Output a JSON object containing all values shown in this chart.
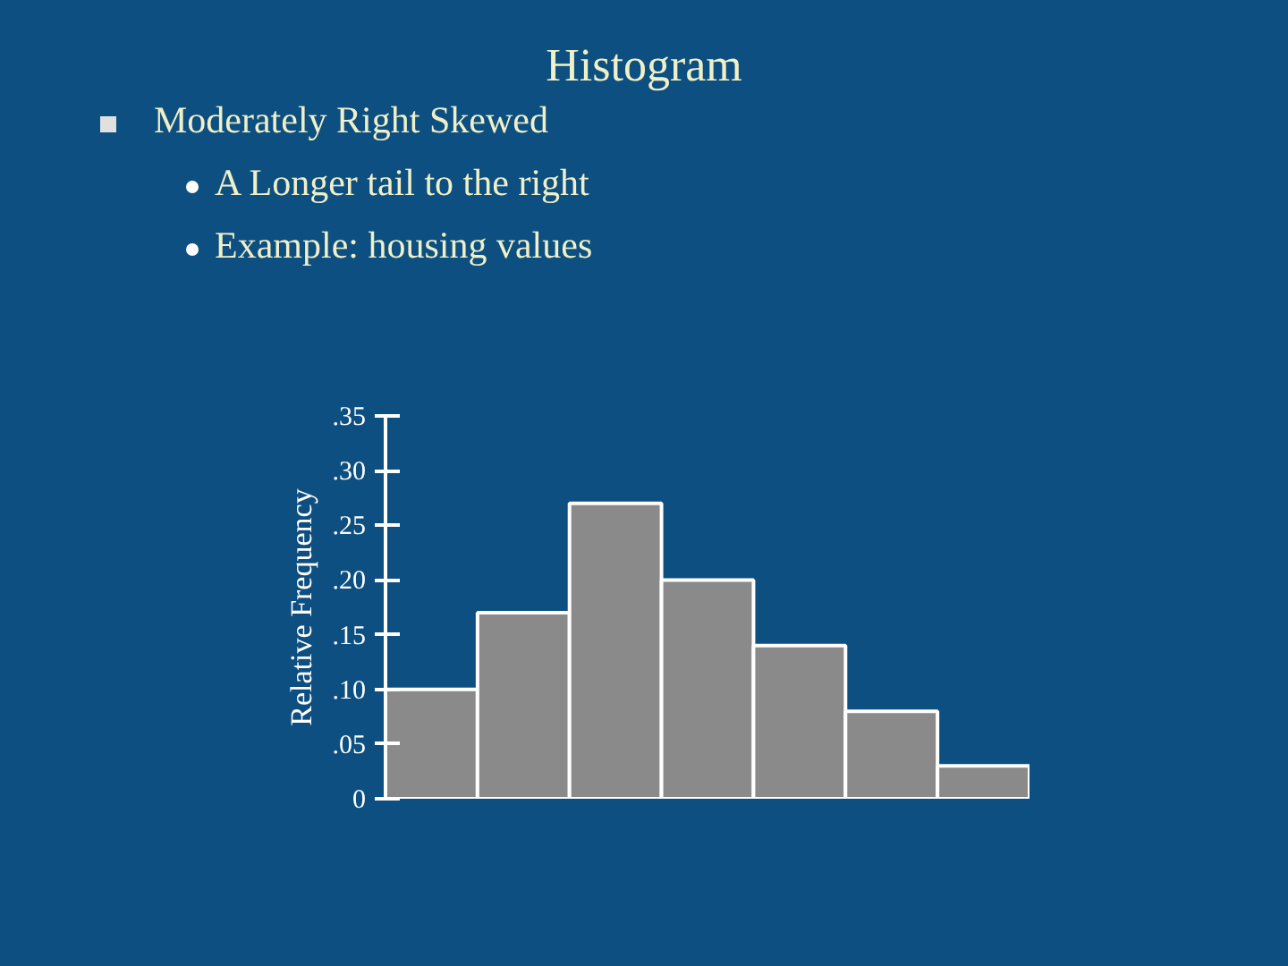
{
  "chart_data": {
    "type": "bar",
    "title": "Histogram",
    "annotations": [
      "Moderately Right Skewed",
      "A Longer tail to the right",
      "Example:  housing values"
    ],
    "ylabel": "Relative Frequency",
    "categories": [
      null,
      null,
      null,
      null,
      null,
      null,
      null
    ],
    "values": [
      0.1,
      0.17,
      0.27,
      0.2,
      0.14,
      0.08,
      0.03
    ],
    "color": "#8a8a8a",
    "ylim": [
      0,
      0.35
    ],
    "yticks": [
      {
        "value": 0,
        "label": "0"
      },
      {
        "value": 0.05,
        "label": ".05"
      },
      {
        "value": 0.1,
        "label": ".10"
      },
      {
        "value": 0.15,
        "label": ".15"
      },
      {
        "value": 0.2,
        "label": ".20"
      },
      {
        "value": 0.25,
        "label": ".25"
      },
      {
        "value": 0.3,
        "label": ".30"
      },
      {
        "value": 0.35,
        "label": ".35"
      }
    ],
    "tick_labels": "y",
    "grid": false
  }
}
